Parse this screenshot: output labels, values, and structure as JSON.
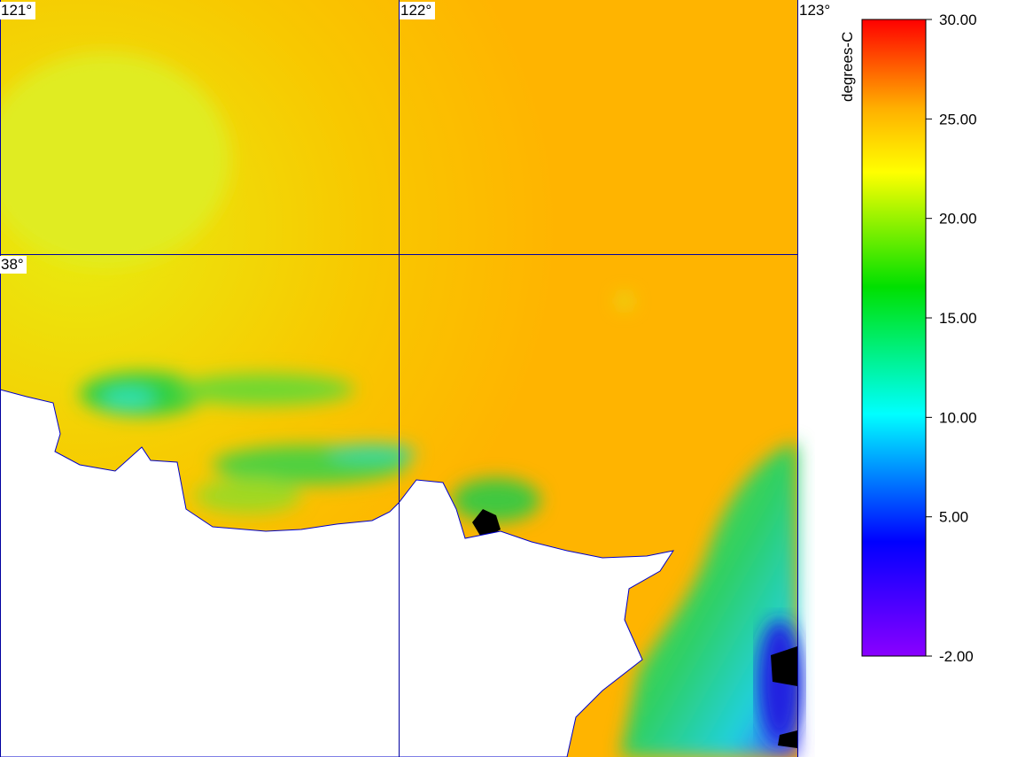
{
  "map": {
    "longitude_labels": [
      "121°",
      "122°",
      "123°"
    ],
    "latitude_labels": [
      "38°"
    ]
  },
  "colorbar": {
    "unit": "degrees-C",
    "lim": [
      -2,
      30
    ],
    "ticks": [
      {
        "value": 30,
        "label": "30.00"
      },
      {
        "value": 25,
        "label": "25.00"
      },
      {
        "value": 20,
        "label": "20.00"
      },
      {
        "value": 15,
        "label": "15.00"
      },
      {
        "value": 10,
        "label": "10.00"
      },
      {
        "value": 5,
        "label": "5.00"
      },
      {
        "value": -2,
        "label": "-2.00"
      }
    ]
  }
}
